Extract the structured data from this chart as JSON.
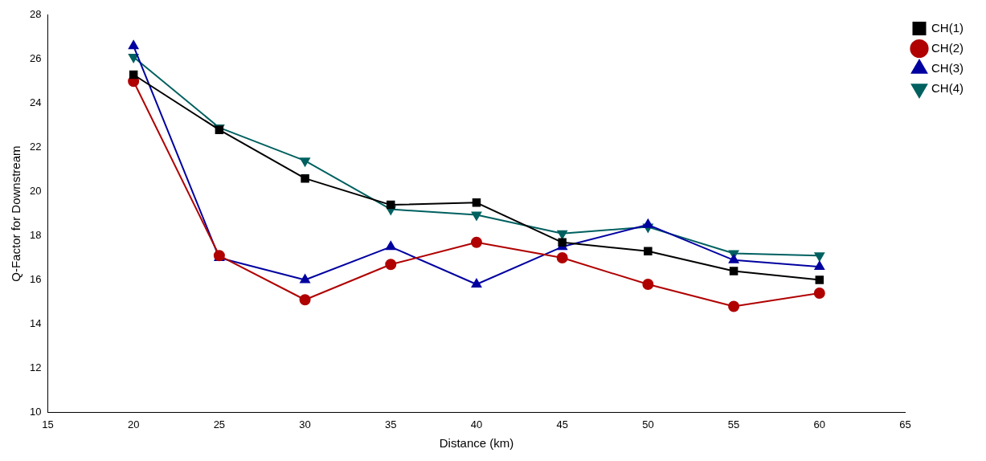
{
  "chart_data": {
    "type": "line",
    "xlabel": "Distance (km)",
    "ylabel": "Q-Factor for Downstream",
    "x": [
      20,
      25,
      30,
      35,
      40,
      45,
      50,
      55,
      60
    ],
    "series": [
      {
        "name": "CH(1)",
        "color": "#000000",
        "marker": "square",
        "values": [
          25.3,
          22.8,
          20.6,
          19.4,
          19.5,
          17.7,
          17.3,
          16.4,
          16.0
        ]
      },
      {
        "name": "CH(2)",
        "color": "#b00000",
        "marker": "circle",
        "values": [
          25.0,
          17.1,
          15.1,
          16.7,
          17.7,
          17.0,
          15.8,
          14.8,
          15.4
        ]
      },
      {
        "name": "CH(3)",
        "color": "#0000a0",
        "marker": "triangle",
        "values": [
          26.6,
          17.0,
          16.0,
          17.5,
          15.8,
          17.5,
          18.5,
          16.9,
          16.6
        ]
      },
      {
        "name": "CH(4)",
        "color": "#006060",
        "marker": "triangle-down",
        "values": [
          26.1,
          22.9,
          21.4,
          19.2,
          18.95,
          18.1,
          18.4,
          17.2,
          17.1
        ]
      }
    ],
    "xlim": [
      15,
      65
    ],
    "xticks": [
      15,
      20,
      25,
      30,
      35,
      40,
      45,
      50,
      55,
      60,
      65
    ],
    "ylim": [
      10,
      28
    ],
    "yticks": [
      10,
      12,
      14,
      16,
      18,
      20,
      22,
      24,
      26,
      28
    ],
    "grid": false,
    "legend": "top right",
    "line_style": "solid"
  }
}
